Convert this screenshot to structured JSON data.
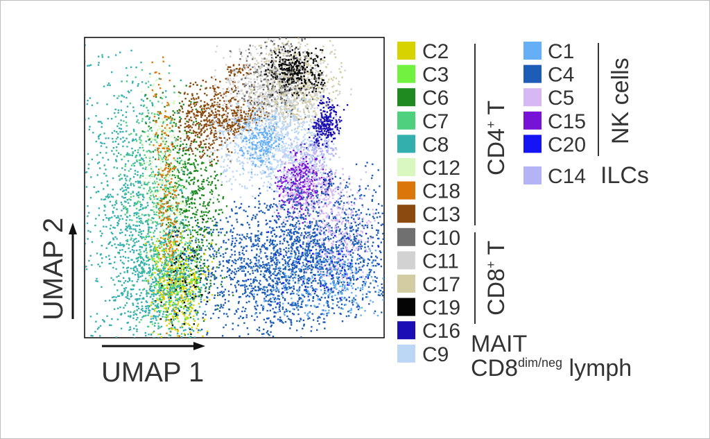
{
  "chart_data": {
    "type": "scatter",
    "plot": "UMAP",
    "axes": {
      "xlabel": "UMAP 1",
      "ylabel": "UMAP 2",
      "ticks": false,
      "grid": false,
      "arrows": true
    },
    "legend_placement": "right",
    "clusters": [
      {
        "id": "C2",
        "color": "#D7D300",
        "group": "CD4+ T"
      },
      {
        "id": "C3",
        "color": "#71F23E",
        "group": "CD4+ T"
      },
      {
        "id": "C6",
        "color": "#1F8A1F",
        "group": "CD4+ T"
      },
      {
        "id": "C7",
        "color": "#4FD07E",
        "group": "CD4+ T"
      },
      {
        "id": "C8",
        "color": "#33B0AD",
        "group": "CD4+ T"
      },
      {
        "id": "C12",
        "color": "#D8F8BF",
        "group": "CD4+ T"
      },
      {
        "id": "C18",
        "color": "#D9770A",
        "group": "CD4+ T"
      },
      {
        "id": "C13",
        "color": "#8B4A0E",
        "group": "CD4+ T"
      },
      {
        "id": "C10",
        "color": "#707070",
        "group": "CD8+ T"
      },
      {
        "id": "C11",
        "color": "#D2D2D2",
        "group": "CD8+ T"
      },
      {
        "id": "C17",
        "color": "#D3CCA2",
        "group": "CD8+ T"
      },
      {
        "id": "C19",
        "color": "#050505",
        "group": "CD8+ T"
      },
      {
        "id": "C16",
        "color": "#1A0EB4",
        "group": "MAIT"
      },
      {
        "id": "C9",
        "color": "#BBD7F5",
        "group": "CD8dim/neg lymph"
      },
      {
        "id": "C1",
        "color": "#64AFF5",
        "group": "NK cells"
      },
      {
        "id": "C4",
        "color": "#1D5DB8",
        "group": "NK cells"
      },
      {
        "id": "C5",
        "color": "#D8B8F4",
        "group": "NK cells"
      },
      {
        "id": "C15",
        "color": "#7712D7",
        "group": "NK cells"
      },
      {
        "id": "C20",
        "color": "#1414F5",
        "group": "NK cells"
      },
      {
        "id": "C14",
        "color": "#B3B3F5",
        "group": "ILCs"
      }
    ],
    "group_labels": {
      "cd4": "CD4",
      "cd8": "CD8",
      "plus": "+",
      "t": " T",
      "nk": "NK cells",
      "ilc": "ILCs",
      "mait": "MAIT",
      "cd8dim": "CD8",
      "cd8dim_sup": "dim/neg",
      "lymph": " lymph"
    }
  }
}
